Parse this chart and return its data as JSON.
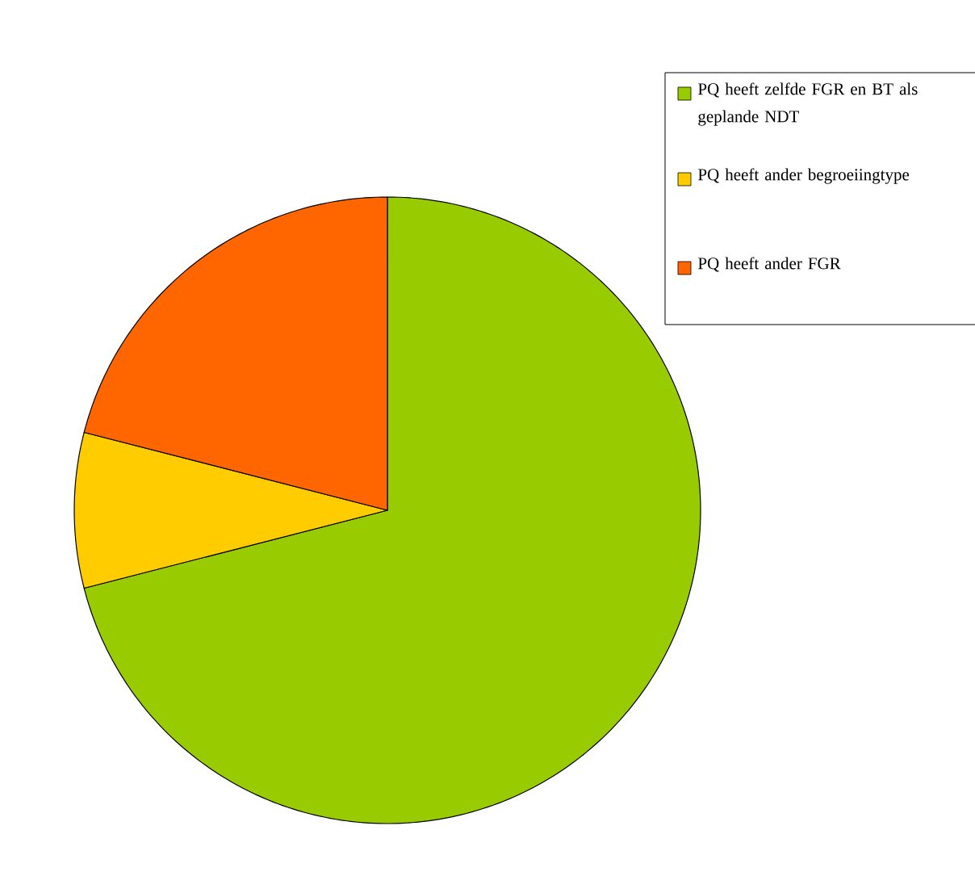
{
  "chart_data": {
    "type": "pie",
    "categories": [
      "PQ heeft zelfde FGR en BT als geplande NDT",
      "PQ heeft ander begroeiingtype",
      "PQ heeft ander FGR"
    ],
    "values": [
      71,
      8,
      21
    ],
    "colors": [
      "#99cc00",
      "#ffcc00",
      "#ff6600"
    ],
    "legend": "right"
  }
}
